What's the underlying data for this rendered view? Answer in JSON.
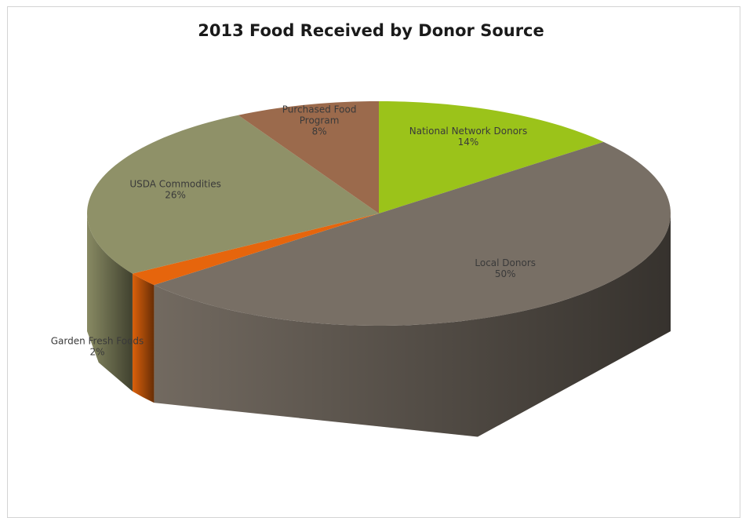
{
  "chart_data": {
    "type": "pie",
    "title": "2013 Food Received by Donor Source",
    "slices": [
      {
        "label": "National Network Donors",
        "value": 14,
        "value_label": "14%",
        "color": "#9bc31a"
      },
      {
        "label": "Local Donors",
        "value": 50,
        "value_label": "50%",
        "color": "#786f65"
      },
      {
        "label": "Garden Fresh Foods",
        "value": 2,
        "value_label": "2%",
        "color": "#e6650c"
      },
      {
        "label": "USDA Commodities",
        "value": 26,
        "value_label": "26%",
        "color": "#8f9168"
      },
      {
        "label": "Purchased Food Program",
        "value": 8,
        "value_label": "8%",
        "color": "#9b6a4c"
      }
    ],
    "legend": "none",
    "style": "3d-pie"
  }
}
